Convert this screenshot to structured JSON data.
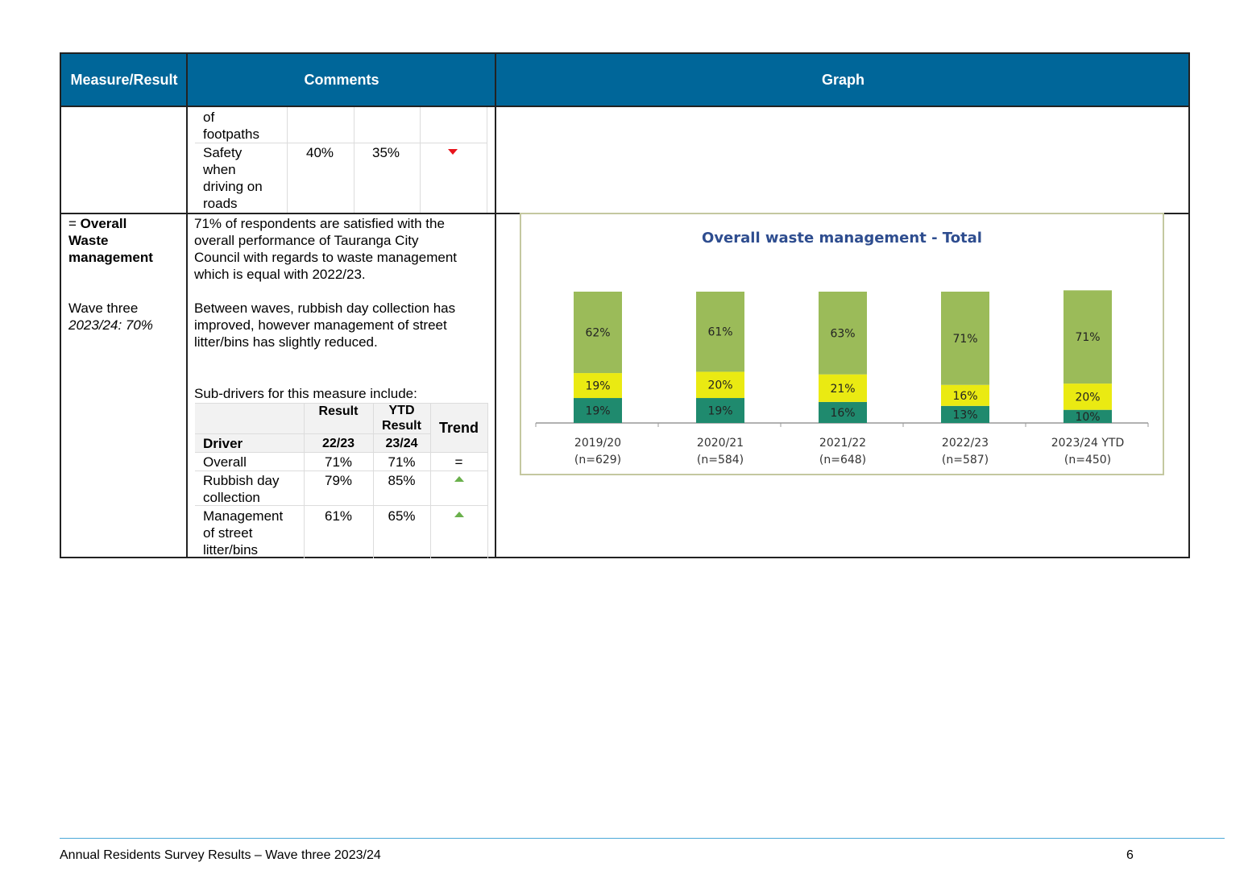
{
  "table": {
    "headers": {
      "measure": "Measure/Result",
      "comments": "Comments",
      "graph": "Graph"
    },
    "row1": {
      "cont_driver_line1": "of",
      "cont_driver_line2": "footpaths",
      "driver": {
        "l1": "Safety",
        "l2": "when",
        "l3": "driving on",
        "l4": "roads"
      },
      "result": "40%",
      "ytd": "35%",
      "trend": "down"
    },
    "row2": {
      "measure_prefix": "= ",
      "measure_l1": "Overall",
      "measure_l2": "Waste",
      "measure_l3": "management",
      "wave_label": "Wave three",
      "wave_value": "2023/24: 70%",
      "comment1": {
        "l1": "71% of respondents are satisfied with the",
        "l2": "overall performance of Tauranga City",
        "l3": "Council with regards to waste management",
        "l4": "which is equal with 2022/23."
      },
      "comment2": {
        "l1": "Between waves, rubbish day collection has",
        "l2": "improved, however management of street",
        "l3": "litter/bins has slightly reduced."
      },
      "subdrivers_intro": "Sub-drivers for this measure include:",
      "subtable": {
        "h_result": "Result",
        "h_ytd_l1": "YTD",
        "h_ytd_l2": "Result",
        "h_trend": "Trend",
        "h_driver": "Driver",
        "h_period1": "22/23",
        "h_period2": "23/24",
        "rows": [
          {
            "l1": "Overall",
            "l2": "",
            "l3": "",
            "result": "71%",
            "ytd": "71%",
            "trend": "="
          },
          {
            "l1": "Rubbish day",
            "l2": "collection",
            "l3": "",
            "result": "79%",
            "ytd": "85%",
            "trend": "up"
          },
          {
            "l1": "Management",
            "l2": "of street",
            "l3": "litter/bins",
            "result": "61%",
            "ytd": "65%",
            "trend": "up"
          }
        ]
      }
    }
  },
  "colors": {
    "header_bg": "#006699",
    "seg_top": "#9bbb59",
    "seg_mid": "#eaea12",
    "seg_bot": "#1f8a6e",
    "title": "#2e4d8f",
    "trend_down": "#e8141c",
    "trend_up": "#6ab04c"
  },
  "chart_data": {
    "type": "bar",
    "stacked": true,
    "title": "Overall waste management - Total",
    "categories": [
      "2019/20",
      "2020/21",
      "2021/22",
      "2022/23",
      "2023/24 YTD"
    ],
    "sample_sizes": [
      "(n=629)",
      "(n=584)",
      "(n=648)",
      "(n=587)",
      "(n=450)"
    ],
    "series": [
      {
        "values": [
          19,
          19,
          16,
          13,
          10
        ],
        "color": "#1f8a6e"
      },
      {
        "values": [
          19,
          20,
          21,
          16,
          20
        ],
        "color": "#eaea12"
      },
      {
        "values": [
          62,
          61,
          63,
          71,
          71
        ],
        "color": "#9bbb59"
      }
    ],
    "ylim": [
      0,
      100
    ],
    "legend": "none"
  },
  "footer": {
    "text": "Annual Residents Survey Results – Wave three 2023/24",
    "page": "6"
  }
}
